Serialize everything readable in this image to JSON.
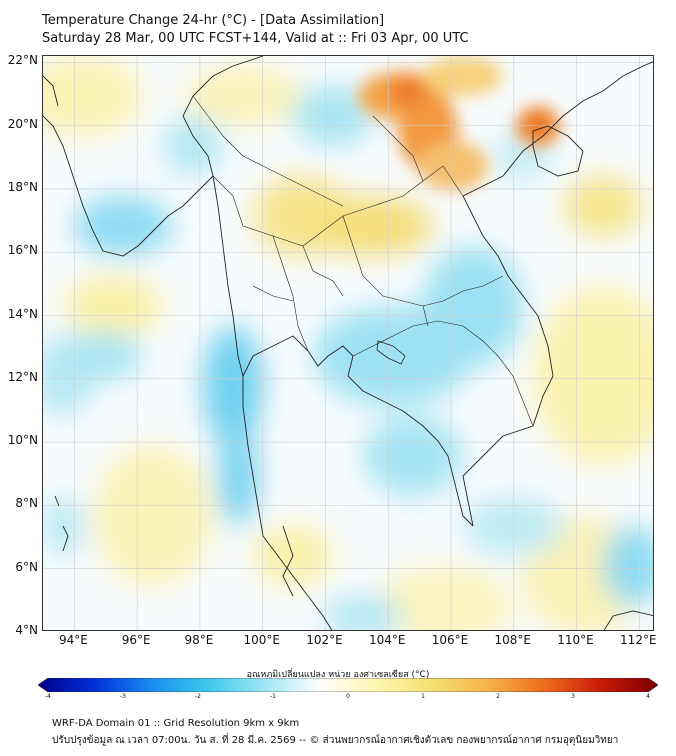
{
  "header": {
    "title": "Temperature Change 24-hr (°C) - [Data Assimilation]",
    "subtitle": "Saturday 28 Mar, 00 UTC FCST+144, Valid at :: Fri 03 Apr, 00 UTC"
  },
  "map": {
    "lon_range": [
      93,
      112.5
    ],
    "lat_range": [
      4,
      22.2
    ],
    "lat_labels": [
      "22°N",
      "20°N",
      "18°N",
      "16°N",
      "14°N",
      "12°N",
      "10°N",
      "8°N",
      "6°N",
      "4°N"
    ],
    "lat_values": [
      22,
      20,
      18,
      16,
      14,
      12,
      10,
      8,
      6,
      4
    ],
    "lon_labels": [
      "94°E",
      "96°E",
      "98°E",
      "100°E",
      "102°E",
      "104°E",
      "106°E",
      "108°E",
      "110°E",
      "112°E"
    ],
    "lon_values": [
      94,
      96,
      98,
      100,
      102,
      104,
      106,
      108,
      110,
      112
    ],
    "grid": true
  },
  "colorbar": {
    "caption": "อุณหภูมิเปลี่ยนแปลง หน่วย องศาเซลเซียส (°C)",
    "ticks": [
      "-4",
      "-3",
      "-2",
      "-1",
      "0",
      "1",
      "2",
      "3",
      "4"
    ],
    "range": [
      -4,
      4
    ],
    "colors": [
      "#00008a",
      "#0030d8",
      "#1a8cf0",
      "#3cc8ec",
      "#9ee6f4",
      "#ffffff",
      "#fff6b0",
      "#f3e070",
      "#f5b24a",
      "#ef6a1c",
      "#c81a08",
      "#780000"
    ]
  },
  "footer": {
    "line1": "WRF-DA Domain 01 :: Grid Resolution 9km x 9km",
    "line2": "ปรับปรุงข้อมูล ณ เวลา 07:00น. วัน ส. ที่ 28 มี.ค. 2569 -- © ส่วนพยากรณ์อากาศเชิงตัวเลข กองพยากรณ์อากาศ กรมอุตุนิยมวิทยา"
  }
}
